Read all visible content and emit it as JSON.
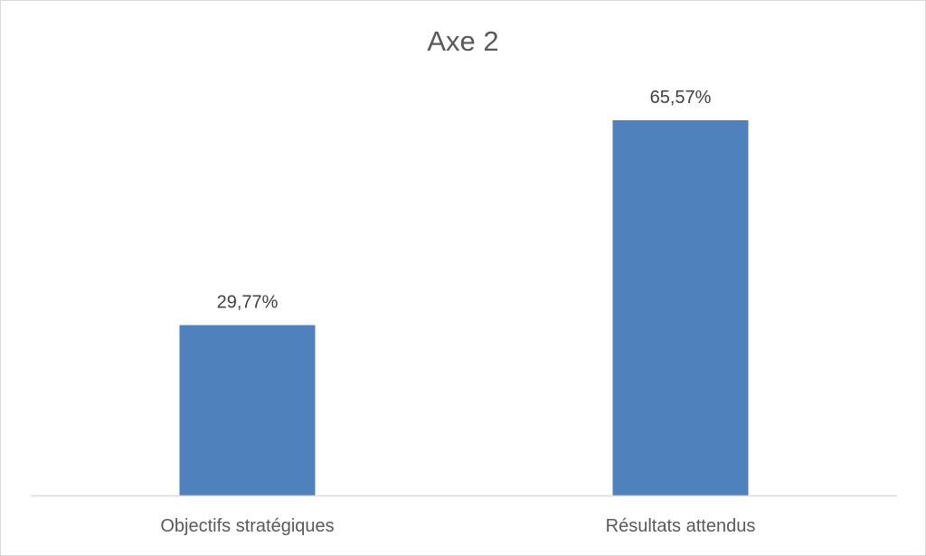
{
  "chart_data": {
    "type": "bar",
    "title": "Axe 2",
    "categories": [
      "Objectifs stratégiques",
      "Résultats attendus"
    ],
    "values": [
      29.77,
      65.57
    ],
    "data_labels": [
      "29,77%",
      "65,57%"
    ],
    "ylim": [
      0,
      70
    ],
    "grid": false,
    "legend": "none",
    "bar_color": "#4f81bd",
    "axis_color": "#d9d9d9",
    "text_color": "#595959"
  }
}
